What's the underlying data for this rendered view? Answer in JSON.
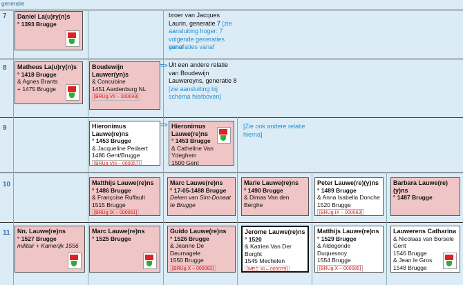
{
  "header": {
    "title": "generatie"
  },
  "generations": [
    "7",
    "8",
    "9",
    "10",
    "11"
  ],
  "gen7": {
    "card": {
      "name": "Daniel La(u)ry(n)s",
      "birth": "° 1393 Brugge"
    },
    "note": {
      "text": "broer van Jacques Laurin, generatie 7 ",
      "link": "[zie aansluiting hoger: 7 volgende generaties vanaf"
    }
  },
  "gen8": {
    "matheus": {
      "name": "Matheus La(u)ry(n)s",
      "birth": "° 1418 Brugge",
      "spouse": "& Agnes Brants",
      "death": "+ 1475 Brugge"
    },
    "boudewijn": {
      "name": "Boudewijn Lauwer(yn)s",
      "spouse": "& Concubine",
      "place": "1451 Aardenburg NL",
      "ref": "[BRUg VII – 000043]"
    },
    "arrow": "=>",
    "note": {
      "text": "Uit een andere relatie van Boudewijn Lauwereyns, generatie 8 ",
      "link": "[zie aansluiting bij schema hierboven]"
    }
  },
  "gen9": {
    "hieronimus1": {
      "name": "Hieronimus Lauwe(re)ns",
      "birth": "° 1453 Brugge",
      "spouse": "& Jacqueline Pedaert",
      "place": "1486 Gent/Brugge",
      "ref": "[BRUg VIII – 000057]"
    },
    "arrow": "=>",
    "hieronimus2": {
      "name": "Hieronimus Lauwe(re)ns",
      "birth": "° 1453 Brugge",
      "spouse": "& Catheline Van Ydeghem",
      "place": "1500 Gent"
    },
    "note": {
      "link": "[Zie ook andere relatie hierna]"
    }
  },
  "gen10": {
    "matthijs": {
      "name": "Matthijs Lauwe(re)ns",
      "birth": "° 1486 Brugge",
      "spouse": "& Françoise Ruffault",
      "place": "1515 Brugge",
      "ref": "[BRUg IX – 000061]"
    },
    "marc": {
      "name": "Marc Lauwe(re)ns",
      "birth": "° 17-05-1488 Brugge",
      "extra": "Deken van Sint-Donaat te Brugge"
    },
    "marie": {
      "name": "Marie Lauwe(re)ns",
      "birth": "° 1490 Brugge",
      "spouse": "& Dimas Van den Berghe"
    },
    "peter": {
      "name": "Peter Lauwe(re)(y)ns",
      "birth": "° 1489 Brugge",
      "spouse": "& Anna Isabella Donche",
      "place": "1520 Brugge",
      "ref": "[BRUg IX – 000063]"
    },
    "barbara": {
      "name": "Barbara Lauwe(re)(y)ns",
      "birth": "° 1487 Brugge"
    }
  },
  "gen11": {
    "nn": {
      "name": "Nn. Lauwe(re)ns",
      "birth": "° 1527 Brugge",
      "extra": "militair + Kamerijk 1556"
    },
    "marc": {
      "name": "Marc Lauwe(re)ns",
      "birth": "° 1525 Brugge"
    },
    "guido": {
      "name": "Guido Lauwe(re)ns",
      "birth": "° 1526 Brugge",
      "spouse": "& Jeanne De Deurnagele",
      "place": "1550 Brugge",
      "ref": "[BRUg X – 000082]"
    },
    "jerome": {
      "name": "Jerome Lauwe(re)ns",
      "birth": "° 1520",
      "spouse": "& Katrien Van Der Borght",
      "place": "1545 Mechelen",
      "ref": "[MEC XI – 000079]"
    },
    "matthijs": {
      "name": "Matthijs Lauwe(re)ns",
      "birth": "° 1529 Brugge",
      "spouse": "& Aldegonde Duquesnoy",
      "place": "1554 Brugge",
      "ref": "[BRUg X – 000085]"
    },
    "lauwerens": {
      "name": "Lauwerens Catharina",
      "spouse": "& Nicolaas van Borsele",
      "place0": "Gent",
      "line1": "1546 Brugge",
      "line2": "& Jean le Gros",
      "line3": "1548 Brugge"
    }
  }
}
